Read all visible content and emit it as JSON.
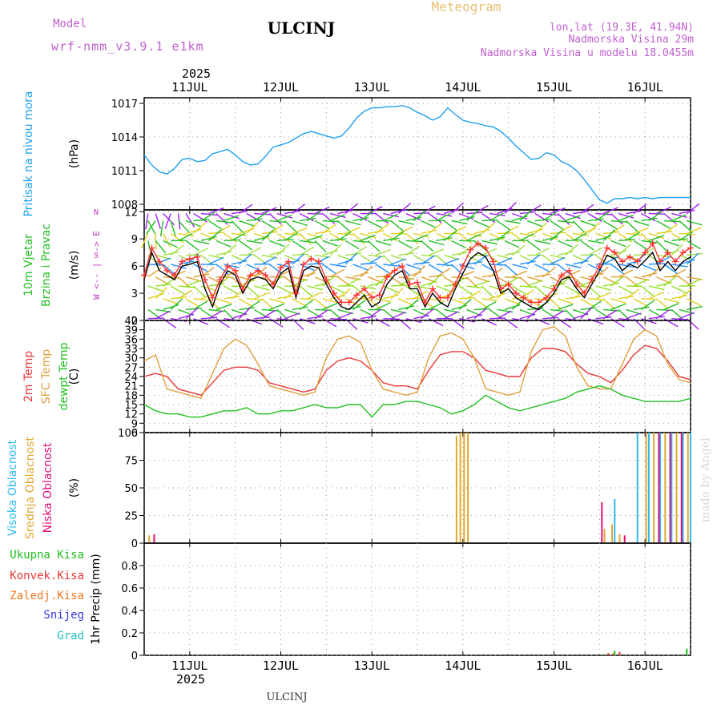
{
  "header": {
    "model_label": "Model",
    "model_name": "wrf-nmm_v3.9.1 e1km",
    "station": "ULCINJ",
    "title": "Meteogram",
    "lonlat": "lon,lat (19.3E, 41.94N)",
    "elevation": "Nadmorska Visina 29m",
    "model_elevation": "Nadmorska Visina u modelu 18.0455m"
  },
  "footer": {
    "station": "ULCINJ",
    "credit": "made by Angel"
  },
  "time_axis": {
    "year": "2025",
    "day_labels": [
      "11JUL",
      "12JUL",
      "13JUL",
      "14JUL",
      "15JUL",
      "16JUL"
    ],
    "range_hours": [
      -12,
      132
    ]
  },
  "colors": {
    "pressure": "#1ea0f0",
    "wind_speed": "#000000",
    "wind_gust": "#ff3030",
    "temp_2m": "#e83838",
    "temp_sfc": "#e0a040",
    "dewpoint": "#22c022",
    "cloud_high": "#30b8f0",
    "cloud_mid": "#e0a830",
    "cloud_low": "#e0107a",
    "precip_total": "#22c022",
    "precip_conv": "#e83838",
    "precip_frozen": "#f07820",
    "precip_snow": "#3838e8",
    "precip_graupel": "#20c0c0",
    "arrow_label": "#c040c0"
  },
  "chart_data": [
    {
      "type": "line",
      "ylabel": [
        "Pritisak na nivou mora",
        "(hPa)"
      ],
      "ylim": [
        1007.5,
        1017.5
      ],
      "yticks": [
        1008,
        1011,
        1014,
        1017
      ],
      "grid": true,
      "series": [
        {
          "name": "Pritisak na nivou mora",
          "x": [
            -12,
            -10,
            -8,
            -6,
            -4,
            -2,
            0,
            2,
            4,
            6,
            8,
            10,
            12,
            14,
            16,
            18,
            20,
            22,
            24,
            26,
            28,
            30,
            32,
            34,
            36,
            38,
            40,
            42,
            44,
            46,
            48,
            50,
            52,
            54,
            56,
            58,
            60,
            62,
            64,
            66,
            68,
            70,
            72,
            74,
            76,
            78,
            80,
            82,
            84,
            86,
            88,
            90,
            92,
            94,
            96,
            98,
            100,
            102,
            104,
            106,
            108,
            110,
            112,
            114,
            116,
            118,
            120,
            122,
            124,
            126,
            128,
            130,
            132
          ],
          "values": [
            1012.4,
            1011.5,
            1010.9,
            1010.7,
            1011.2,
            1012.0,
            1012.1,
            1011.8,
            1011.9,
            1012.5,
            1012.7,
            1012.9,
            1012.4,
            1011.8,
            1011.5,
            1011.6,
            1012.3,
            1013.1,
            1013.3,
            1013.5,
            1013.9,
            1014.3,
            1014.5,
            1014.3,
            1014.1,
            1013.9,
            1014.1,
            1014.8,
            1015.7,
            1016.3,
            1016.6,
            1016.6,
            1016.7,
            1016.7,
            1016.8,
            1016.6,
            1016.2,
            1015.9,
            1015.5,
            1015.8,
            1016.6,
            1016.0,
            1015.5,
            1015.3,
            1015.2,
            1015.0,
            1014.9,
            1014.5,
            1013.9,
            1013.2,
            1012.6,
            1012.0,
            1012.1,
            1012.6,
            1012.4,
            1011.8,
            1011.5,
            1011.0,
            1010.2,
            1009.3,
            1008.4,
            1008.1,
            1008.5,
            1008.5,
            1008.6,
            1008.5,
            1008.6,
            1008.5,
            1008.6,
            1008.6,
            1008.6,
            1008.6,
            1008.6
          ]
        }
      ]
    },
    {
      "type": "line",
      "ylabel": [
        "10m Vjetar",
        "Brzina i Pravac",
        "(m/s)"
      ],
      "ylim": [
        0,
        12.2
      ],
      "yticks": [
        0,
        3,
        6,
        9,
        12
      ],
      "grid": true,
      "arrow_legend": {
        "top": "N",
        "mid": "W <-- | --> E",
        "bottom": "S"
      },
      "series": [
        {
          "name": "wind speed",
          "x": [
            -12,
            -10,
            -8,
            -6,
            -4,
            -2,
            0,
            2,
            4,
            6,
            8,
            10,
            12,
            14,
            16,
            18,
            20,
            22,
            24,
            26,
            28,
            30,
            32,
            34,
            36,
            38,
            40,
            42,
            44,
            46,
            48,
            50,
            52,
            54,
            56,
            58,
            60,
            62,
            64,
            66,
            68,
            70,
            72,
            74,
            76,
            78,
            80,
            82,
            84,
            86,
            88,
            90,
            92,
            94,
            96,
            98,
            100,
            102,
            104,
            106,
            108,
            110,
            112,
            114,
            116,
            118,
            120,
            122,
            124,
            126,
            128,
            130,
            132
          ],
          "values": [
            4.5,
            7.5,
            5.5,
            5.0,
            4.5,
            6.0,
            6.2,
            6.5,
            3.5,
            1.5,
            4.0,
            5.5,
            5.0,
            3.0,
            4.5,
            4.8,
            4.5,
            3.5,
            5.2,
            5.8,
            2.5,
            5.5,
            6.0,
            5.8,
            4.0,
            2.5,
            1.5,
            1.2,
            2.0,
            2.8,
            1.5,
            2.0,
            4.0,
            5.0,
            5.5,
            3.5,
            3.5,
            1.5,
            3.0,
            2.0,
            1.5,
            3.5,
            5.2,
            6.8,
            7.5,
            7.0,
            5.5,
            3.0,
            3.5,
            2.5,
            2.0,
            1.5,
            1.2,
            2.0,
            3.0,
            4.5,
            4.8,
            3.5,
            2.5,
            4.0,
            5.5,
            7.2,
            6.8,
            5.5,
            6.2,
            5.8,
            6.6,
            7.5,
            5.5,
            6.5,
            5.5,
            6.5,
            7.0
          ]
        },
        {
          "name": "wind gust",
          "x": [
            -12,
            -10,
            -8,
            -6,
            -4,
            -2,
            0,
            2,
            4,
            6,
            8,
            10,
            12,
            14,
            16,
            18,
            20,
            22,
            24,
            26,
            28,
            30,
            32,
            34,
            36,
            38,
            40,
            42,
            44,
            46,
            48,
            50,
            52,
            54,
            56,
            58,
            60,
            62,
            64,
            66,
            68,
            70,
            72,
            74,
            76,
            78,
            80,
            82,
            84,
            86,
            88,
            90,
            92,
            94,
            96,
            98,
            100,
            102,
            104,
            106,
            108,
            110,
            112,
            114,
            116,
            118,
            120,
            122,
            124,
            126,
            128,
            130,
            132
          ],
          "values": [
            5.0,
            8.0,
            6.5,
            5.5,
            5.0,
            6.5,
            6.8,
            7.0,
            4.5,
            2.5,
            4.5,
            6.0,
            5.5,
            3.5,
            5.0,
            5.5,
            5.0,
            4.0,
            5.8,
            6.5,
            3.0,
            6.2,
            6.8,
            6.5,
            4.5,
            3.0,
            2.0,
            2.0,
            2.8,
            3.5,
            2.5,
            2.8,
            4.8,
            5.5,
            6.0,
            4.0,
            4.2,
            2.0,
            3.5,
            2.5,
            2.5,
            4.0,
            6.0,
            7.8,
            8.5,
            8.0,
            6.5,
            3.5,
            4.0,
            3.0,
            2.5,
            2.0,
            2.0,
            2.5,
            3.5,
            5.0,
            5.5,
            4.0,
            3.0,
            4.5,
            6.0,
            8.0,
            7.5,
            6.5,
            7.0,
            6.5,
            7.5,
            8.5,
            6.5,
            7.5,
            6.5,
            7.5,
            8.0
          ]
        }
      ],
      "barb_rows": [
        {
          "level": 11.8,
          "color": "#a020f0"
        },
        {
          "level": 11.0,
          "color": "#22c022"
        },
        {
          "level": 9.6,
          "color": "#e0d020"
        },
        {
          "level": 8.8,
          "color": "#22c022"
        },
        {
          "level": 7.2,
          "color": "#a0e040"
        },
        {
          "level": 6.2,
          "color": "#1e90ff"
        },
        {
          "level": 4.8,
          "color": "#e0a030"
        },
        {
          "level": 3.8,
          "color": "#90e020"
        },
        {
          "level": 2.4,
          "color": "#e0d020"
        },
        {
          "level": 1.2,
          "color": "#22c022"
        },
        {
          "level": 0.2,
          "color": "#a020f0"
        }
      ]
    },
    {
      "type": "line",
      "ylabel": [
        "2m Temp",
        "SFC Temp",
        "dewpt Temp",
        "(C)"
      ],
      "ylim": [
        6,
        42
      ],
      "yticks": [
        6,
        9,
        12,
        15,
        18,
        21,
        24,
        27,
        30,
        33,
        36,
        39,
        42
      ],
      "grid": true,
      "series": [
        {
          "name": "2m Temp",
          "x": [
            -12,
            -9,
            -6,
            -3,
            0,
            3,
            6,
            9,
            12,
            15,
            18,
            21,
            24,
            27,
            30,
            33,
            36,
            39,
            42,
            45,
            48,
            51,
            54,
            57,
            60,
            63,
            66,
            69,
            72,
            75,
            78,
            81,
            84,
            87,
            90,
            93,
            96,
            99,
            102,
            105,
            108,
            111,
            114,
            117,
            120,
            123,
            126,
            129,
            132
          ],
          "values": [
            24,
            25,
            24,
            20,
            19,
            18,
            22,
            26,
            27,
            27,
            26,
            22,
            21,
            20,
            19,
            20,
            26,
            29,
            30,
            29,
            26,
            22,
            21,
            21,
            20,
            26,
            31,
            32,
            32,
            30,
            26,
            25,
            24,
            24,
            30,
            33,
            33,
            32,
            28,
            25,
            24,
            22,
            26,
            31,
            34,
            33,
            29,
            24,
            23
          ]
        },
        {
          "name": "SFC Temp",
          "x": [
            -12,
            -9,
            -6,
            -3,
            0,
            3,
            6,
            9,
            12,
            15,
            18,
            21,
            24,
            27,
            30,
            33,
            36,
            39,
            42,
            45,
            48,
            51,
            54,
            57,
            60,
            63,
            66,
            69,
            72,
            75,
            78,
            81,
            84,
            87,
            90,
            93,
            96,
            99,
            102,
            105,
            108,
            111,
            114,
            117,
            120,
            123,
            126,
            129,
            132
          ],
          "values": [
            29,
            31,
            20,
            19,
            18,
            17,
            25,
            33,
            36,
            34,
            28,
            21,
            20,
            19,
            18,
            19,
            30,
            36,
            37,
            35,
            26,
            20,
            19,
            18,
            19,
            30,
            37,
            38,
            36,
            30,
            20,
            19,
            18,
            19,
            32,
            39,
            40,
            37,
            27,
            21,
            20,
            20,
            28,
            36,
            39,
            37,
            28,
            23,
            22
          ]
        },
        {
          "name": "dewpt Temp",
          "x": [
            -12,
            -9,
            -6,
            -3,
            0,
            3,
            6,
            9,
            12,
            15,
            18,
            21,
            24,
            27,
            30,
            33,
            36,
            39,
            42,
            45,
            48,
            51,
            54,
            57,
            60,
            63,
            66,
            69,
            72,
            75,
            78,
            81,
            84,
            87,
            90,
            93,
            96,
            99,
            102,
            105,
            108,
            111,
            114,
            117,
            120,
            123,
            126,
            129,
            132
          ],
          "values": [
            15,
            13,
            12,
            12,
            11,
            11,
            12,
            13,
            13,
            14,
            12,
            12,
            13,
            13,
            14,
            15,
            14,
            14,
            15,
            15,
            11,
            15,
            15,
            16,
            16,
            15,
            14,
            12,
            13,
            15,
            18,
            16,
            14,
            13,
            14,
            15,
            16,
            17,
            19,
            20,
            21,
            20,
            18,
            17,
            16,
            16,
            16,
            16,
            17
          ]
        }
      ]
    },
    {
      "type": "bar",
      "ylabel": [
        "Visoka Oblacnost",
        "Srednja Oblacnost",
        "Niska Oblacnost",
        "(%)"
      ],
      "ylim": [
        0,
        100
      ],
      "yticks": [
        0,
        25,
        50,
        75,
        100
      ],
      "grid": true,
      "series": [
        {
          "name": "Visoka Oblacnost",
          "points": [
            [
              118,
              100
            ],
            [
              121,
              100
            ],
            [
              124,
              100
            ],
            [
              127,
              100
            ],
            [
              130,
              100
            ],
            [
              132,
              100
            ],
            [
              112,
              40
            ]
          ]
        },
        {
          "name": "Srednja Oblacnost",
          "points": [
            [
              -11,
              7
            ],
            [
              70,
              97
            ],
            [
              71,
              100
            ],
            [
              72,
              100
            ],
            [
              73,
              100
            ],
            [
              109,
              13
            ],
            [
              111,
              17
            ],
            [
              113,
              8
            ],
            [
              120,
              100
            ],
            [
              122,
              100
            ],
            [
              125,
              100
            ],
            [
              128,
              100
            ],
            [
              131,
              100
            ]
          ]
        },
        {
          "name": "Niska Oblacnost",
          "points": [
            [
              -10,
              8
            ],
            [
              108,
              37
            ],
            [
              114,
              7
            ],
            [
              123,
              100
            ],
            [
              126,
              100
            ],
            [
              129,
              100
            ]
          ]
        }
      ]
    },
    {
      "type": "bar",
      "ylabel": [
        "Ukupna Kisa",
        "Konvek.Kisa",
        "Zaledj.Kisa",
        "Snijeg",
        "Grad",
        "1hr Precip (mm)"
      ],
      "ylim": [
        0,
        1.0
      ],
      "yticks": [
        0,
        0.2,
        0.4,
        0.6,
        0.8
      ],
      "grid": true,
      "series": [
        {
          "name": "Ukupna Kisa",
          "points": [
            [
              109,
              0.01
            ],
            [
              112,
              0.04
            ],
            [
              131,
              0.06
            ]
          ]
        },
        {
          "name": "Konvek.Kisa",
          "points": [
            [
              110,
              0.02
            ],
            [
              113,
              0.03
            ]
          ]
        },
        {
          "name": "Zaledj.Kisa",
          "points": [
            [
              111,
              0.02
            ]
          ]
        },
        {
          "name": "Snijeg",
          "points": []
        },
        {
          "name": "Grad",
          "points": []
        }
      ]
    }
  ]
}
